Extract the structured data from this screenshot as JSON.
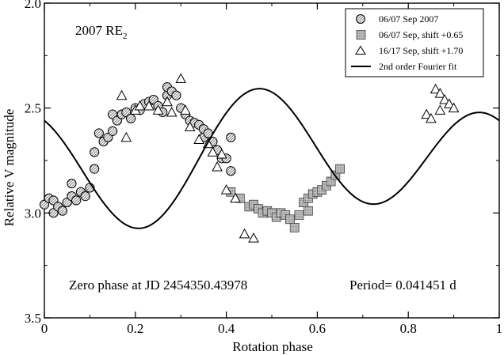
{
  "chart_data": {
    "type": "scatter",
    "title": "",
    "object_name": "2007 RE",
    "object_name_sub": "2",
    "xlabel": "Rotation phase",
    "ylabel": "Relative V magnitude",
    "xlim": [
      0,
      1
    ],
    "ylim": [
      3.5,
      2.0
    ],
    "y_inverted": true,
    "grid": false,
    "legend_position": "top-right",
    "x_ticks": [
      "0",
      "0.2",
      "0.4",
      "0.6",
      "0.8",
      "1"
    ],
    "y_ticks": [
      "2.0",
      "2.5",
      "3.0",
      "3.5"
    ],
    "annotations": {
      "zero_phase": "Zero phase at JD 2454350.43978",
      "period": "Period= 0.041451 d"
    },
    "series": [
      {
        "name": "06/07 Sep 2007",
        "marker": "hatched-circle",
        "points": [
          [
            0.0,
            2.96
          ],
          [
            0.01,
            2.93
          ],
          [
            0.02,
            2.94
          ],
          [
            0.02,
            3.0
          ],
          [
            0.03,
            2.97
          ],
          [
            0.04,
            2.99
          ],
          [
            0.05,
            2.95
          ],
          [
            0.06,
            2.92
          ],
          [
            0.06,
            2.86
          ],
          [
            0.07,
            2.94
          ],
          [
            0.08,
            2.9
          ],
          [
            0.09,
            2.92
          ],
          [
            0.1,
            2.88
          ],
          [
            0.11,
            2.79
          ],
          [
            0.11,
            2.71
          ],
          [
            0.12,
            2.62
          ],
          [
            0.13,
            2.66
          ],
          [
            0.14,
            2.64
          ],
          [
            0.15,
            2.61
          ],
          [
            0.15,
            2.53
          ],
          [
            0.16,
            2.56
          ],
          [
            0.17,
            2.53
          ],
          [
            0.18,
            2.52
          ],
          [
            0.19,
            2.55
          ],
          [
            0.2,
            2.5
          ],
          [
            0.21,
            2.51
          ],
          [
            0.22,
            2.48
          ],
          [
            0.23,
            2.47
          ],
          [
            0.24,
            2.46
          ],
          [
            0.25,
            2.49
          ],
          [
            0.26,
            2.52
          ],
          [
            0.27,
            2.44
          ],
          [
            0.27,
            2.4
          ],
          [
            0.28,
            2.42
          ],
          [
            0.29,
            2.44
          ],
          [
            0.3,
            2.5
          ],
          [
            0.31,
            2.53
          ],
          [
            0.32,
            2.56
          ],
          [
            0.33,
            2.57
          ],
          [
            0.34,
            2.58
          ],
          [
            0.35,
            2.6
          ],
          [
            0.35,
            2.64
          ],
          [
            0.36,
            2.62
          ],
          [
            0.37,
            2.66
          ],
          [
            0.38,
            2.7
          ],
          [
            0.39,
            2.74
          ],
          [
            0.4,
            2.74
          ],
          [
            0.41,
            2.64
          ],
          [
            0.41,
            2.8
          ]
        ]
      },
      {
        "name": "06/07 Sep, shift +0.65",
        "marker": "hatched-square",
        "points": [
          [
            0.41,
            2.9
          ],
          [
            0.43,
            2.93
          ],
          [
            0.45,
            2.97
          ],
          [
            0.46,
            2.96
          ],
          [
            0.47,
            2.98
          ],
          [
            0.48,
            3.0
          ],
          [
            0.49,
            2.99
          ],
          [
            0.5,
            3.0
          ],
          [
            0.51,
            3.02
          ],
          [
            0.52,
            3.0
          ],
          [
            0.53,
            3.01
          ],
          [
            0.54,
            3.03
          ],
          [
            0.55,
            3.07
          ],
          [
            0.56,
            3.01
          ],
          [
            0.57,
            2.95
          ],
          [
            0.58,
            2.93
          ],
          [
            0.58,
            2.99
          ],
          [
            0.59,
            2.91
          ],
          [
            0.6,
            2.9
          ],
          [
            0.61,
            2.89
          ],
          [
            0.62,
            2.87
          ],
          [
            0.63,
            2.85
          ],
          [
            0.64,
            2.82
          ],
          [
            0.65,
            2.79
          ]
        ]
      },
      {
        "name": "16/17 Sep, shift +1.70",
        "marker": "open-triangle",
        "points": [
          [
            0.17,
            2.44
          ],
          [
            0.18,
            2.64
          ],
          [
            0.2,
            2.51
          ],
          [
            0.21,
            2.49
          ],
          [
            0.23,
            2.49
          ],
          [
            0.25,
            2.51
          ],
          [
            0.27,
            2.47
          ],
          [
            0.28,
            2.52
          ],
          [
            0.3,
            2.36
          ],
          [
            0.31,
            2.51
          ],
          [
            0.32,
            2.59
          ],
          [
            0.34,
            2.65
          ],
          [
            0.36,
            2.67
          ],
          [
            0.37,
            2.71
          ],
          [
            0.38,
            2.78
          ],
          [
            0.39,
            2.72
          ],
          [
            0.4,
            2.89
          ],
          [
            0.42,
            2.93
          ],
          [
            0.44,
            3.1
          ],
          [
            0.46,
            3.12
          ],
          [
            0.84,
            2.53
          ],
          [
            0.85,
            2.55
          ],
          [
            0.86,
            2.41
          ],
          [
            0.87,
            2.43
          ],
          [
            0.87,
            2.51
          ],
          [
            0.88,
            2.46
          ],
          [
            0.89,
            2.48
          ],
          [
            0.9,
            2.5
          ]
        ]
      },
      {
        "name": "2nd order Fourier fit",
        "marker": "line",
        "fourier": {
          "mean": 2.74,
          "a1": 0.068,
          "b1": 0.044,
          "a2": -0.248,
          "b2": 0.117
        }
      }
    ]
  }
}
